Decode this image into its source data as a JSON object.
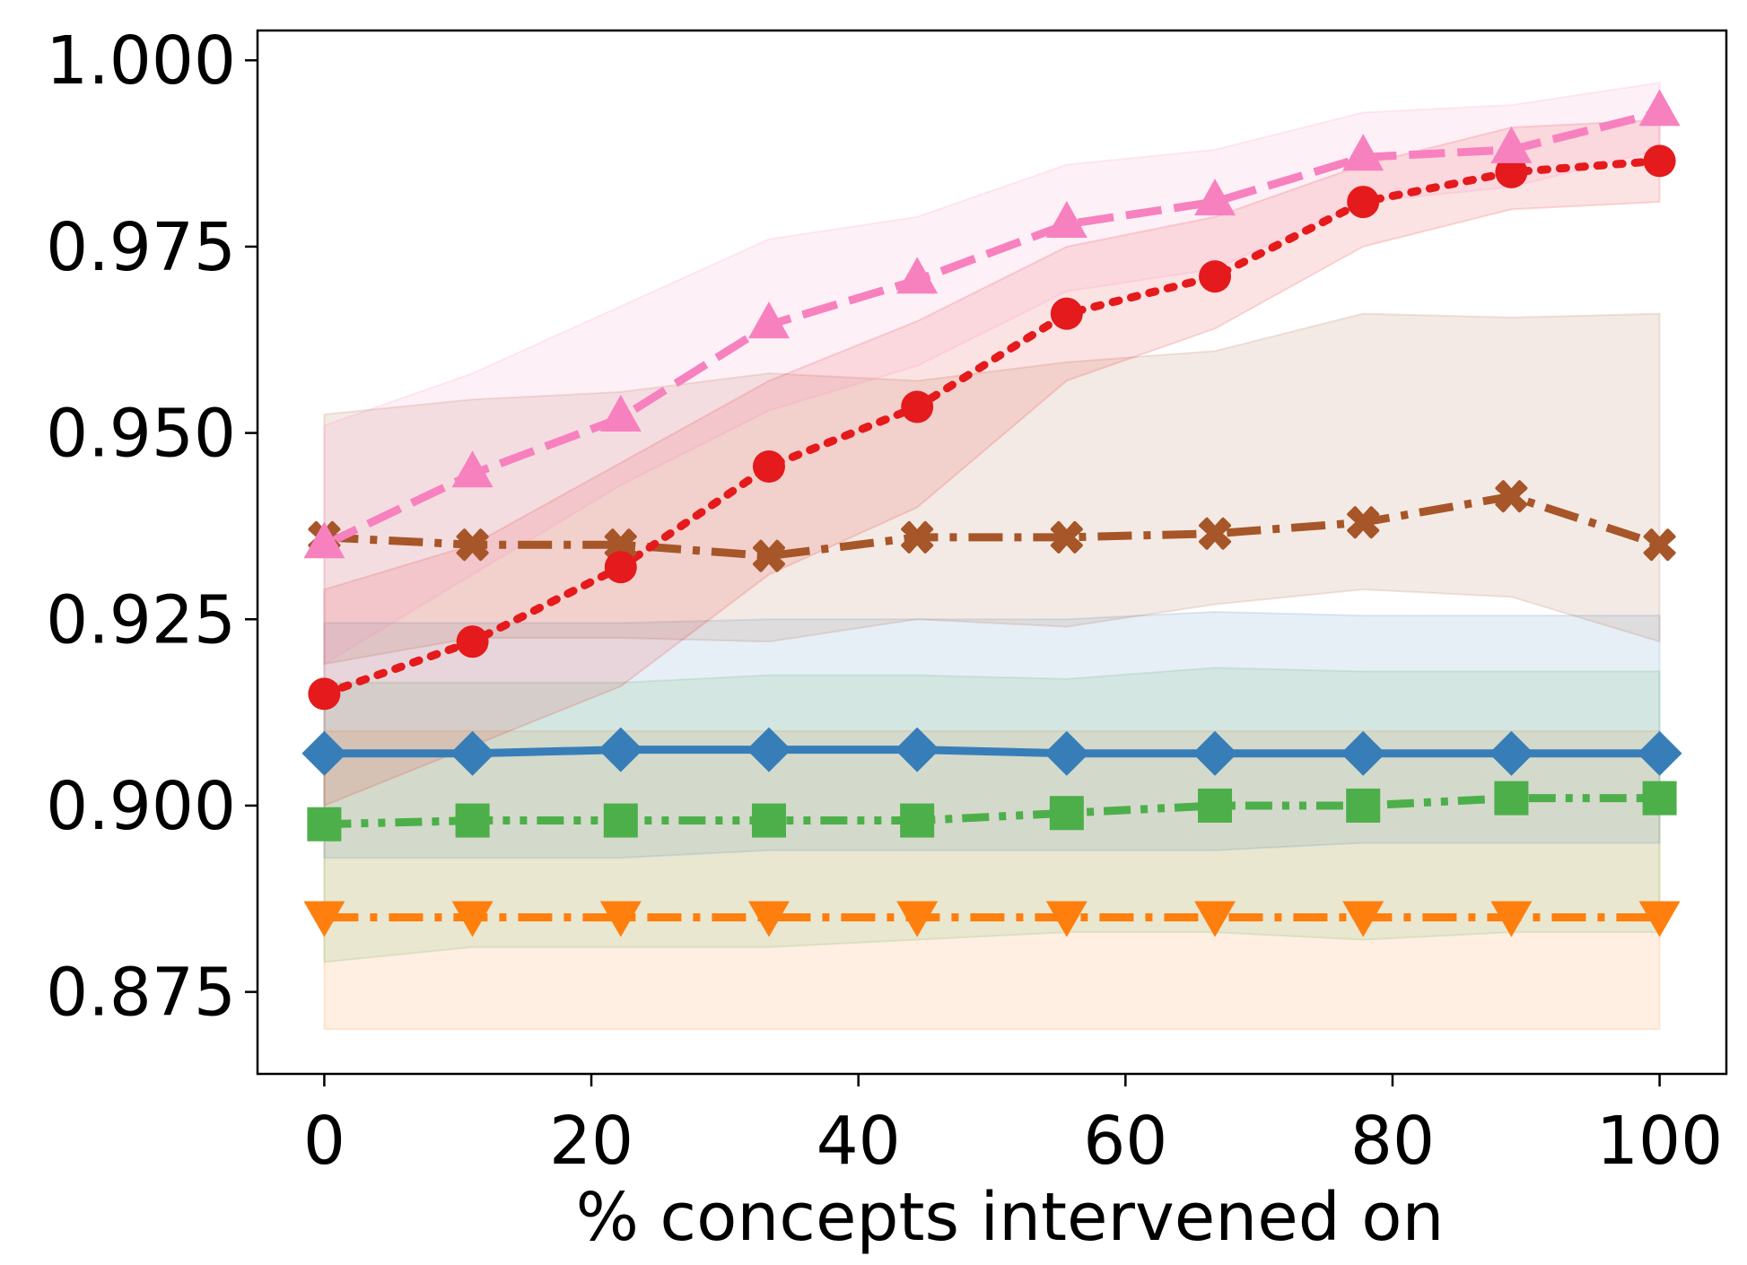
{
  "chart_data": {
    "type": "line",
    "title": "",
    "xlabel": "% concepts intervened on",
    "ylabel": "",
    "xlim": [
      -5,
      105
    ],
    "ylim": [
      0.864,
      1.004
    ],
    "xticks": [
      0,
      20,
      40,
      60,
      80,
      100
    ],
    "xtick_labels": [
      "0",
      "20",
      "40",
      "60",
      "80",
      "100"
    ],
    "yticks": [
      0.875,
      0.9,
      0.925,
      0.95,
      0.975,
      1.0
    ],
    "ytick_labels": [
      "0.875",
      "0.900",
      "0.925",
      "0.950",
      "0.975",
      "1.000"
    ],
    "grid": false,
    "legend": false,
    "x": [
      0,
      11.1,
      22.2,
      33.3,
      44.4,
      55.6,
      66.7,
      77.8,
      88.9,
      100
    ],
    "series": [
      {
        "name": "orange",
        "color": "#ff7f0e",
        "marker": "triangle-down",
        "linestyle": "dashdot",
        "values": [
          0.885,
          0.885,
          0.885,
          0.885,
          0.885,
          0.885,
          0.885,
          0.885,
          0.885,
          0.885
        ],
        "lower": [
          0.87,
          0.87,
          0.87,
          0.87,
          0.87,
          0.87,
          0.87,
          0.87,
          0.87,
          0.87
        ],
        "upper": [
          0.91,
          0.91,
          0.91,
          0.91,
          0.91,
          0.91,
          0.91,
          0.91,
          0.91,
          0.91
        ]
      },
      {
        "name": "green",
        "color": "#4daf4a",
        "marker": "square",
        "linestyle": "dashdotdot",
        "values": [
          0.8975,
          0.898,
          0.898,
          0.898,
          0.898,
          0.899,
          0.9,
          0.9,
          0.901,
          0.901
        ],
        "lower": [
          0.879,
          0.881,
          0.881,
          0.881,
          0.882,
          0.883,
          0.883,
          0.882,
          0.883,
          0.883
        ],
        "upper": [
          0.9165,
          0.9165,
          0.9165,
          0.9175,
          0.9175,
          0.917,
          0.9185,
          0.918,
          0.918,
          0.918
        ]
      },
      {
        "name": "blue",
        "color": "#377eb8",
        "marker": "diamond",
        "linestyle": "solid",
        "values": [
          0.907,
          0.907,
          0.9075,
          0.9075,
          0.9075,
          0.907,
          0.907,
          0.907,
          0.907,
          0.907
        ],
        "lower": [
          0.893,
          0.893,
          0.893,
          0.894,
          0.894,
          0.894,
          0.894,
          0.895,
          0.895,
          0.895
        ],
        "upper": [
          0.9245,
          0.9245,
          0.9245,
          0.925,
          0.925,
          0.925,
          0.926,
          0.9255,
          0.9255,
          0.9255
        ]
      },
      {
        "name": "brown",
        "color": "#a65628",
        "marker": "x",
        "linestyle": "dashdot",
        "values": [
          0.936,
          0.935,
          0.935,
          0.9335,
          0.936,
          0.936,
          0.9365,
          0.938,
          0.9415,
          0.935
        ],
        "lower": [
          0.919,
          0.9225,
          0.9225,
          0.922,
          0.925,
          0.924,
          0.927,
          0.929,
          0.928,
          0.922
        ],
        "upper": [
          0.9525,
          0.9545,
          0.9555,
          0.958,
          0.957,
          0.9595,
          0.961,
          0.966,
          0.9655,
          0.966
        ]
      },
      {
        "name": "red",
        "color": "#e41a1c",
        "marker": "circle",
        "linestyle": "dotted",
        "values": [
          0.915,
          0.922,
          0.932,
          0.9455,
          0.9535,
          0.966,
          0.971,
          0.981,
          0.985,
          0.9865
        ],
        "lower": [
          0.9,
          0.908,
          0.916,
          0.931,
          0.94,
          0.957,
          0.964,
          0.975,
          0.98,
          0.981
        ],
        "upper": [
          0.929,
          0.935,
          0.946,
          0.957,
          0.965,
          0.975,
          0.979,
          0.986,
          0.991,
          0.992
        ]
      },
      {
        "name": "pink",
        "color": "#f781bf",
        "marker": "triangle-up",
        "linestyle": "dashed",
        "values": [
          0.935,
          0.9445,
          0.952,
          0.9645,
          0.9705,
          0.978,
          0.981,
          0.987,
          0.988,
          0.993
        ],
        "lower": [
          0.919,
          0.931,
          0.943,
          0.953,
          0.959,
          0.969,
          0.972,
          0.981,
          0.983,
          0.988
        ],
        "upper": [
          0.951,
          0.958,
          0.967,
          0.976,
          0.979,
          0.986,
          0.988,
          0.993,
          0.994,
          0.997
        ]
      }
    ]
  }
}
